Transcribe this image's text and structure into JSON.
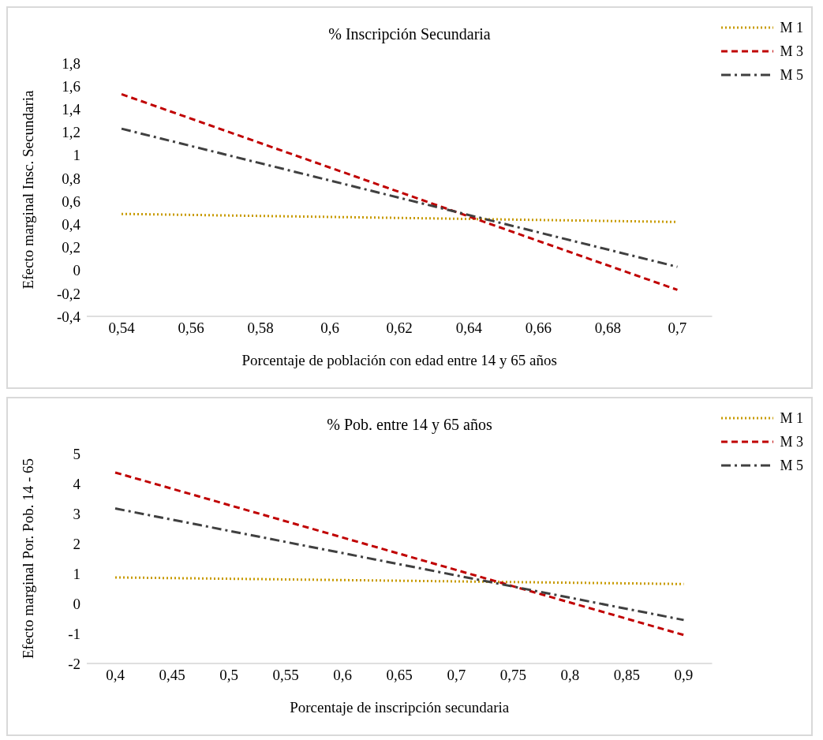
{
  "chart_data": [
    {
      "type": "line",
      "title": "% Inscripción Secundaria",
      "xlabel": "Porcentaje de población con edad entre 14 y 65 años",
      "ylabel": "Efecto marginal Insc. Secundaria",
      "x": [
        0.54,
        0.7
      ],
      "series": [
        {
          "name": "M 1",
          "color": "#c89b00",
          "values": [
            0.49,
            0.42
          ],
          "line_style": "dotted"
        },
        {
          "name": "M 3",
          "color": "#c00000",
          "values": [
            1.53,
            -0.17
          ],
          "line_style": "dashed"
        },
        {
          "name": "M 5",
          "color": "#404040",
          "values": [
            1.23,
            0.03
          ],
          "line_style": "dashdot"
        }
      ],
      "xlim": [
        0.53,
        0.71
      ],
      "xticks": [
        {
          "value": 0.54,
          "label": "0,54"
        },
        {
          "value": 0.56,
          "label": "0,56"
        },
        {
          "value": 0.58,
          "label": "0,58"
        },
        {
          "value": 0.6,
          "label": "0,6"
        },
        {
          "value": 0.62,
          "label": "0,62"
        },
        {
          "value": 0.64,
          "label": "0,64"
        },
        {
          "value": 0.66,
          "label": "0,66"
        },
        {
          "value": 0.68,
          "label": "0,68"
        },
        {
          "value": 0.7,
          "label": "0,7"
        }
      ],
      "ylim": [
        -0.4,
        1.8
      ],
      "yticks": [
        {
          "value": -0.4,
          "label": "-0,4"
        },
        {
          "value": -0.2,
          "label": "-0,2"
        },
        0,
        {
          "value": 0.2,
          "label": "0,2"
        },
        {
          "value": 0.4,
          "label": "0,4"
        },
        {
          "value": 0.6,
          "label": "0,6"
        },
        {
          "value": 0.8,
          "label": "0,8"
        },
        1,
        {
          "value": 1.2,
          "label": "1,2"
        },
        {
          "value": 1.4,
          "label": "1,4"
        },
        {
          "value": 1.6,
          "label": "1,6"
        },
        {
          "value": 1.8,
          "label": "1,8"
        }
      ],
      "legend": "top right"
    },
    {
      "type": "line",
      "title": "% Pob. entre 14 y 65 años",
      "xlabel": "Porcentaje de inscripción secundaria",
      "ylabel": "Efecto marginal Por. Pob. 14 - 65",
      "x": [
        0.4,
        0.9
      ],
      "series": [
        {
          "name": "M 1",
          "color": "#c89b00",
          "values": [
            0.87,
            0.65
          ],
          "line_style": "dotted"
        },
        {
          "name": "M 3",
          "color": "#c00000",
          "values": [
            4.37,
            -1.05
          ],
          "line_style": "dashed"
        },
        {
          "name": "M 5",
          "color": "#404040",
          "values": [
            3.17,
            -0.55
          ],
          "line_style": "dashdot"
        }
      ],
      "xlim": [
        0.375,
        0.925
      ],
      "xticks": [
        {
          "value": 0.4,
          "label": "0,4"
        },
        {
          "value": 0.45,
          "label": "0,45"
        },
        {
          "value": 0.5,
          "label": "0,5"
        },
        {
          "value": 0.55,
          "label": "0,55"
        },
        {
          "value": 0.6,
          "label": "0,6"
        },
        {
          "value": 0.65,
          "label": "0,65"
        },
        {
          "value": 0.7,
          "label": "0,7"
        },
        {
          "value": 0.75,
          "label": "0,75"
        },
        {
          "value": 0.8,
          "label": "0,8"
        },
        {
          "value": 0.85,
          "label": "0,85"
        },
        {
          "value": 0.9,
          "label": "0,9"
        }
      ],
      "ylim": [
        -2,
        5
      ],
      "yticks": [
        -2,
        -1,
        0,
        1,
        2,
        3,
        4,
        5
      ],
      "legend": "top right"
    }
  ]
}
